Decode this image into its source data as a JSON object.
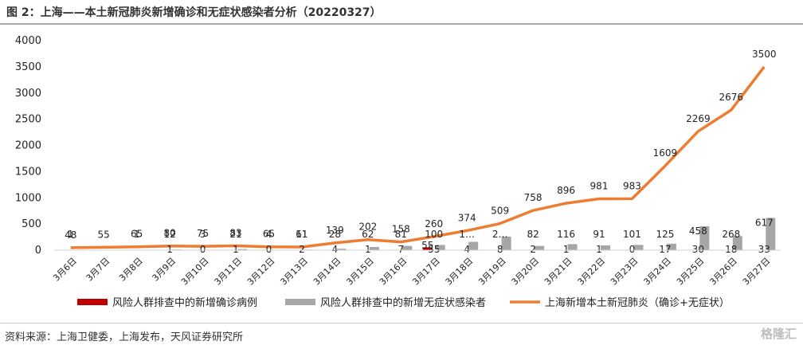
{
  "header": {
    "title": "图 2：上海——本土新冠肺炎新增确诊和无症状感染者分析（20220327）"
  },
  "footer": {
    "source": "资料来源：上海卫健委，上海发布，天风证券研究所",
    "watermark": "格隆汇"
  },
  "chart_data": {
    "type": "bar",
    "categories": [
      "3月6日",
      "3月7日",
      "3月8日",
      "3月9日",
      "3月10日",
      "3月11日",
      "3月12日",
      "3月13日",
      "3月14日",
      "3月15日",
      "3月16日",
      "3月17日",
      "3月18日",
      "3月19日",
      "3月20日",
      "3月21日",
      "3月22日",
      "3月23日",
      "3月24日",
      "3月25日",
      "3月26日",
      "3月27日"
    ],
    "ylim": [
      0,
      4000
    ],
    "yticks": [
      0,
      500,
      1000,
      1500,
      2000,
      2500,
      3000,
      3500,
      4000
    ],
    "grid": false,
    "legend_position": "bottom",
    "series": [
      {
        "name": "风险人群排查中的新增确诊病例",
        "kind": "bar",
        "color": "#c00000",
        "values": [
          0,
          0,
          0,
          0,
          0,
          0,
          0,
          0,
          0,
          0,
          0,
          55,
          0,
          0,
          0,
          0,
          0,
          0,
          0,
          0,
          0,
          0
        ],
        "labels": [
          "",
          "",
          "",
          "",
          "",
          "",
          "",
          "",
          "",
          "",
          "",
          "55",
          "",
          "",
          "",
          "",
          "",
          "",
          "",
          "",
          "",
          ""
        ]
      },
      {
        "name": "风险人群排查中的新增无症状感染者",
        "kind": "bar",
        "color": "#a6a6a6",
        "values": [
          1,
          0,
          1,
          12,
          3,
          21,
          4,
          11,
          28,
          62,
          81,
          100,
          160,
          260,
          82,
          116,
          91,
          101,
          125,
          458,
          268,
          617
        ],
        "labels": [
          "1",
          "",
          "1",
          "12",
          "3",
          "21",
          "4",
          "11",
          "28",
          "62",
          "81",
          "100",
          "1…",
          "2…",
          "82",
          "116",
          "91",
          "101",
          "125",
          "458",
          "268",
          "617"
        ],
        "baseline_labels": [
          "",
          "",
          "",
          "1",
          "0",
          "1",
          "0",
          "2",
          "4",
          "1",
          "7",
          "55",
          "4",
          "8",
          "2",
          "1",
          "1",
          "0",
          "17",
          "30",
          "18",
          "33"
        ]
      },
      {
        "name": "上海新增本土新冠肺炎（确诊+无症状）",
        "kind": "line",
        "color": "#ed7d31",
        "values": [
          48,
          55,
          65,
          80,
          75,
          83,
          65,
          61,
          139,
          202,
          158,
          260,
          374,
          509,
          758,
          896,
          981,
          983,
          1609,
          2269,
          2676,
          3500
        ],
        "labels": [
          "48",
          "55",
          "65",
          "80",
          "75",
          "83",
          "65",
          "61",
          "139",
          "202",
          "158",
          "260",
          "374",
          "509",
          "758",
          "896",
          "981",
          "983",
          "1609",
          "2269",
          "2676",
          "3500"
        ]
      }
    ]
  }
}
